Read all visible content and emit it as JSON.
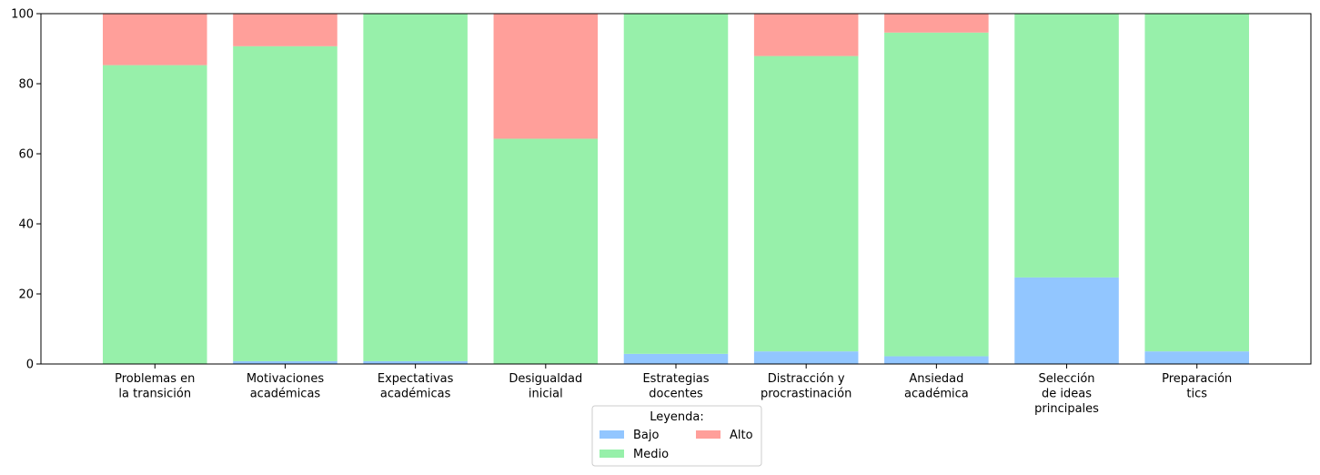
{
  "chart_data": {
    "type": "bar",
    "stacked": true,
    "categories": [
      [
        "Problemas en",
        "la transición"
      ],
      [
        "Motivaciones",
        "académicas"
      ],
      [
        "Expectativas",
        "académicas"
      ],
      [
        "Desigualdad",
        "inicial"
      ],
      [
        "Estrategias",
        "docentes"
      ],
      [
        "Distracción y",
        "procrastinación"
      ],
      [
        "Ansiedad",
        "académica"
      ],
      [
        "Selección",
        "de ideas",
        "principales"
      ],
      [
        "Preparación",
        "tics"
      ]
    ],
    "series": [
      {
        "name": "Bajo",
        "color": "#92c6ff",
        "values": [
          0.0,
          0.8,
          0.8,
          0.0,
          2.9,
          3.6,
          2.2,
          24.7,
          3.6
        ]
      },
      {
        "name": "Medio",
        "color": "#97f0aa",
        "values": [
          85.3,
          89.9,
          99.2,
          64.3,
          97.1,
          84.3,
          92.4,
          75.3,
          96.4
        ]
      },
      {
        "name": "Alto",
        "color": "#ff9f9a",
        "values": [
          14.7,
          9.3,
          0.0,
          35.7,
          0.0,
          12.1,
          5.4,
          0.0,
          0.0
        ]
      }
    ],
    "ylim": [
      0,
      100
    ],
    "yticks": [
      0,
      20,
      40,
      60,
      80,
      100
    ],
    "title": "",
    "xlabel": "",
    "ylabel": "",
    "grid": false,
    "legend": {
      "title": "Leyenda:",
      "placement": "bottom-center",
      "columns": 2
    }
  }
}
